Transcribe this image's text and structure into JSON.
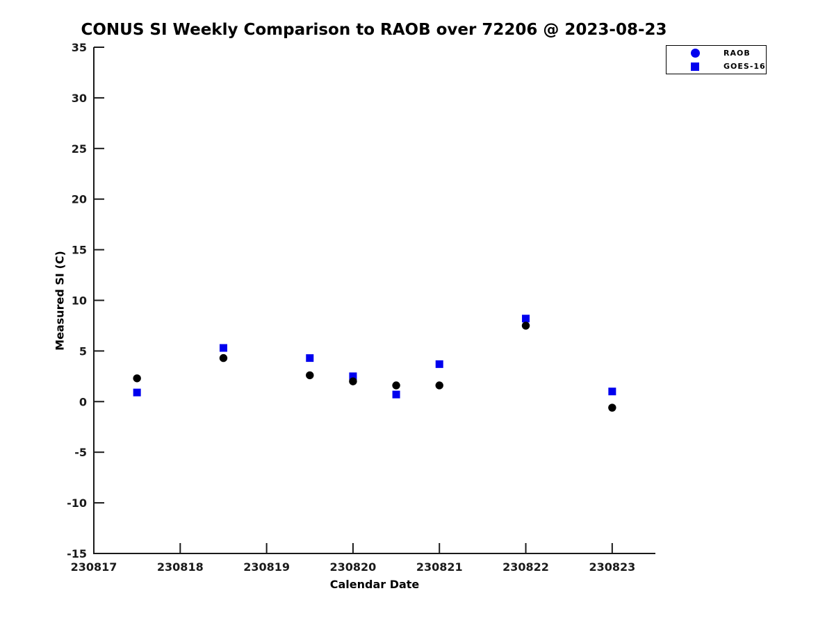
{
  "figure": {
    "background": "#ffffff"
  },
  "chart_data": {
    "type": "scatter",
    "title": "CONUS SI Weekly Comparison to RAOB over 72206 @ 2023-08-23",
    "xlabel": "Calendar Date",
    "ylabel": "Measured SI (C)",
    "xlim": [
      230817,
      230823.5
    ],
    "ylim": [
      -15,
      35
    ],
    "yticks": [
      35,
      30,
      25,
      20,
      15,
      10,
      5,
      0,
      -5,
      -10,
      -15
    ],
    "xticks": [
      230817,
      230818,
      230819,
      230820,
      230821,
      230822,
      230823
    ],
    "xtick_labels": [
      "230817",
      "230818",
      "230819",
      "230820",
      "230821",
      "230822",
      "230823"
    ],
    "grid": false,
    "legend_position": "top-right",
    "axis_color": "#1a1a1a",
    "x": [
      230817.5,
      230818.5,
      230819.5,
      230820,
      230820.5,
      230821,
      230822,
      230823
    ],
    "series": [
      {
        "name": "RAOB",
        "marker": "circle",
        "plot_color": "#000000",
        "legend_marker_color": "#0000ee",
        "values": [
          2.3,
          4.3,
          2.6,
          2.0,
          1.6,
          1.6,
          7.5,
          -0.6
        ]
      },
      {
        "name": "GOES-16",
        "marker": "square",
        "plot_color": "#0000ee",
        "legend_marker_color": "#0000ee",
        "values": [
          0.9,
          5.3,
          4.3,
          2.5,
          0.7,
          3.7,
          8.2,
          1.0
        ]
      }
    ]
  }
}
